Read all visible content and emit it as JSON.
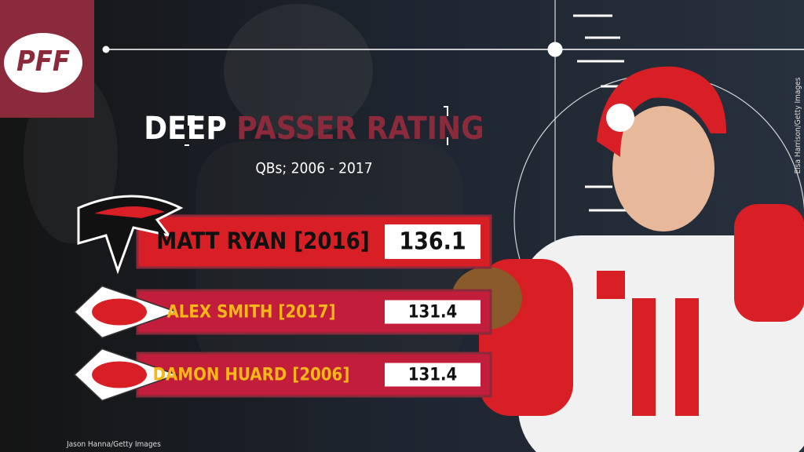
{
  "logo": "PFF",
  "title": {
    "part1": "DEEP",
    "part2": "PASSER RATING"
  },
  "subtitle": "QBs; 2006 - 2017",
  "entries": [
    {
      "name": "MATT RYAN [2016]",
      "value": 136.1
    },
    {
      "name": "ALEX SMITH [2017]",
      "value": 131.4
    },
    {
      "name": "DAMON HUARD [2006]",
      "value": 131.4
    }
  ],
  "credits": {
    "left": "Jason Hanna/Getty Images",
    "right": "Elsa Harrison/Getty Images"
  }
}
